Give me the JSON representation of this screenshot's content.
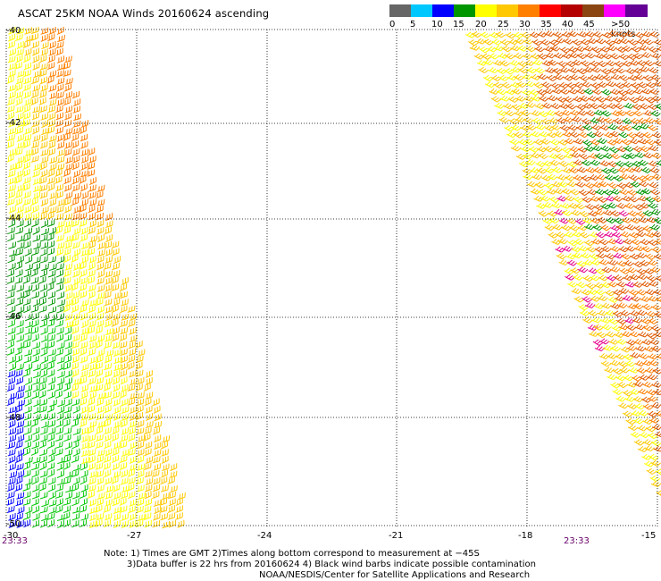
{
  "title": "ASCAT 25KM NOAA Winds 20160624 ascending",
  "legend": {
    "colors": [
      "#666666",
      "#00c8ff",
      "#0000ff",
      "#009600",
      "#ffff00",
      "#ffc800",
      "#ff7f00",
      "#ff0000",
      "#b40000",
      "#8b4513",
      "#ff00ff",
      "#640096"
    ],
    "labels": [
      "0",
      "5",
      "10",
      "15",
      "20",
      "25",
      "30",
      "35",
      "40",
      "45",
      ">50 knots"
    ]
  },
  "axes": {
    "y_labels": [
      "-40",
      "-42",
      "-44",
      "-46",
      "-48",
      "-50"
    ],
    "x_labels": [
      "-27",
      "-24",
      "-21",
      "-18",
      "-15"
    ],
    "x_first_label": "-30"
  },
  "times": {
    "left": "23:33",
    "right": "23:33"
  },
  "notes": {
    "line1": "Note: 1) Times are GMT 2)Times along bottom correspond to measurement at −45S",
    "line2": "3)Data buffer is 22 hrs from 20160624 4) Black wind barbs indicate possible contamination",
    "line3": "NOAA/NESDIS/Center for Satellite Applications and Research"
  },
  "colors": {
    "grid": "#000000",
    "time_label": "#660066"
  },
  "swaths": [
    {
      "name": "western-swath",
      "dominant_speeds": "15-30 knots"
    },
    {
      "name": "eastern-swath",
      "dominant_speeds": "20-45 knots"
    }
  ]
}
